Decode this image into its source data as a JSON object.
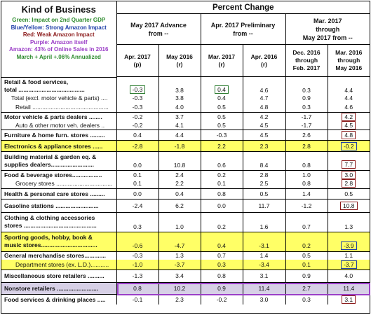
{
  "header": {
    "kind_title": "Kind of Business",
    "percent_change": "Percent Change",
    "legend": [
      {
        "text": "Green: Impact on 2nd Quarter GDP",
        "color": "#2e8b2e"
      },
      {
        "text": "Blue/Yellow: Strong Amazon Impact",
        "color": "#1f3fa8"
      },
      {
        "text": "Red: Weak Amazon Impact",
        "color": "#8b1a1a"
      },
      {
        "text": "Purple: Amazon itself",
        "color": "#9b3fc7"
      },
      {
        "text": "Amazon: 43% of Online Sales in 2016",
        "color": "#9b3fc7"
      },
      {
        "text": "March + April +.06% Annualized",
        "color": "#2e8b2e"
      }
    ],
    "groups": {
      "g1_line1": "May 2017 Advance",
      "g1_line2": "from --",
      "g2_line1": "Apr. 2017 Preliminary",
      "g2_line2": "from --",
      "g3_line1": "Mar. 2017",
      "g3_line2": "through",
      "g3_line3": "May 2017 from --"
    },
    "columns": [
      {
        "l1": "Apr. 2017",
        "l2": "(p)"
      },
      {
        "l1": "May 2016",
        "l2": "(r)"
      },
      {
        "l1": "Mar. 2017",
        "l2": "(r)"
      },
      {
        "l1": "Apr. 2016",
        "l2": "(r)"
      },
      {
        "l1": "Dec. 2016",
        "l2": "through",
        "l3": "Feb. 2017"
      },
      {
        "l1": "Mar. 2016",
        "l2": "through",
        "l3": "May 2016"
      }
    ]
  },
  "rows": {
    "r0": {
      "l1": "Retail & food services,",
      "l2": "total ........................................",
      "v": [
        "-0.3",
        "3.8",
        "0.4",
        "4.6",
        "0.3",
        "4.4"
      ]
    },
    "r1": {
      "label": "Total (excl. motor vehicle & parts) ....",
      "v": [
        "-0.3",
        "3.8",
        "0.4",
        "4.7",
        "0.9",
        "4.4"
      ]
    },
    "r2": {
      "label": "Retail ..............................................",
      "v": [
        "-0.3",
        "4.0",
        "0.5",
        "4.8",
        "0.3",
        "4.6"
      ]
    },
    "r3": {
      "label": "Motor vehicle & parts dealers ........",
      "v": [
        "-0.2",
        "3.7",
        "0.5",
        "4.2",
        "-1.7",
        "4.2"
      ]
    },
    "r4": {
      "label": "Auto & other motor veh. dealers ..",
      "v": [
        "-0.2",
        "4.1",
        "0.5",
        "4.5",
        "-1.7",
        "4.5"
      ]
    },
    "r5": {
      "label": "Furniture & home furn. stores .........",
      "v": [
        "0.4",
        "4.4",
        "-0.3",
        "4.5",
        "2.6",
        "4.8"
      ]
    },
    "r6": {
      "label": "Electronics & appliance stores ......",
      "v": [
        "-2.8",
        "-1.8",
        "2.2",
        "2.3",
        "2.8",
        "-0.2"
      ]
    },
    "r7": {
      "l1": "Building material & garden eq. &",
      "l2": "supplies dealers..........................",
      "v": [
        "0.0",
        "10.8",
        "0.6",
        "8.4",
        "0.8",
        "7.7"
      ]
    },
    "r8": {
      "label": "Food & beverage stores..................",
      "v": [
        "0.1",
        "2.4",
        "0.2",
        "2.8",
        "1.0",
        "3.0"
      ]
    },
    "r9": {
      "label": "Grocery stores ..................................",
      "v": [
        "0.1",
        "2.2",
        "0.1",
        "2.5",
        "0.8",
        "2.8"
      ]
    },
    "r10": {
      "label": "Health & personal care stores .........",
      "v": [
        "0.0",
        "0.4",
        "0.8",
        "0.5",
        "1.4",
        "0.5"
      ]
    },
    "r11": {
      "label": "Gasoline stations ..........................",
      "v": [
        "-2.4",
        "6.2",
        "0.0",
        "11.7",
        "-1.2",
        "10.8"
      ]
    },
    "r12": {
      "l1": "Clothing & clothing accessories",
      "l2": "stores ............................................",
      "v": [
        "0.3",
        "1.0",
        "0.2",
        "1.6",
        "0.7",
        "1.3"
      ]
    },
    "r13": {
      "l1": "Sporting goods, hobby, book &",
      "l2": "music stores..................................",
      "v": [
        "-0.6",
        "-4.7",
        "0.4",
        "-3.1",
        "0.2",
        "-3.9"
      ]
    },
    "r14": {
      "label": "General merchandise stores.............",
      "v": [
        "-0.3",
        "1.3",
        "0.7",
        "1.4",
        "0.5",
        "1.1"
      ]
    },
    "r15": {
      "label": "Department stores (ex. L.D.)...........",
      "v": [
        "-1.0",
        "-3.7",
        "0.3",
        "-3.4",
        "0.1",
        "-3.7"
      ]
    },
    "r16": {
      "label": "Miscellaneous store retailers ..........",
      "v": [
        "-1.3",
        "3.4",
        "0.8",
        "3.1",
        "0.9",
        "4.0"
      ]
    },
    "r17": {
      "label": "Nonstore retailers .........................",
      "v": [
        "0.8",
        "10.2",
        "0.9",
        "11.4",
        "2.7",
        "11.4"
      ]
    },
    "r18": {
      "label": "Food services & drinking places .....",
      "v": [
        "-0.1",
        "2.3",
        "-0.2",
        "3.0",
        "0.3",
        "3.1"
      ]
    }
  }
}
